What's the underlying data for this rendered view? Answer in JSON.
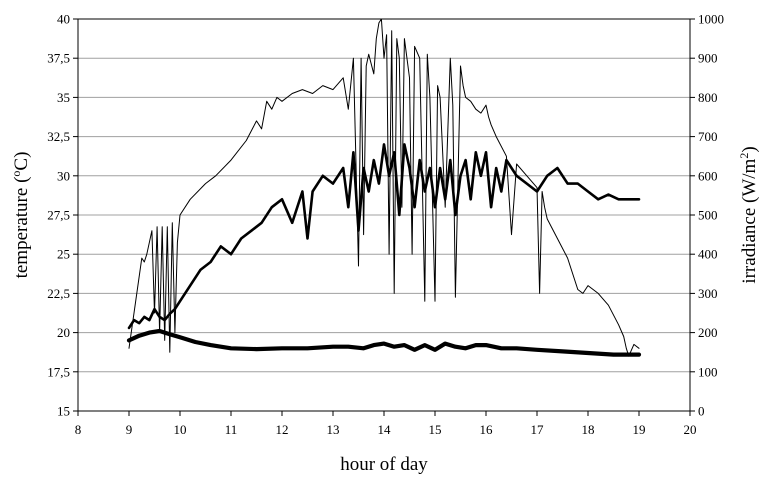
{
  "chart_data": {
    "type": "line",
    "title": "",
    "xlabel": "hour of day",
    "ylabel_left_text": "temperature (",
    "ylabel_left_sup": "o",
    "ylabel_left_unit": "C)",
    "ylabel_right_text": "irradiance (W/m",
    "ylabel_right_sup": "2",
    "ylabel_right_close": ")",
    "xlim": [
      8,
      20
    ],
    "ylim_left": [
      15,
      40
    ],
    "ylim_right": [
      0,
      1000
    ],
    "x_ticks": [
      "8",
      "9",
      "10",
      "11",
      "12",
      "13",
      "14",
      "15",
      "16",
      "17",
      "18",
      "19",
      "20"
    ],
    "y_left_ticks": [
      "15",
      "17,5",
      "20",
      "22,5",
      "25",
      "27,5",
      "30",
      "32,5",
      "35",
      "37,5",
      "40"
    ],
    "y_right_ticks": [
      "0",
      "100",
      "200",
      "300",
      "400",
      "500",
      "600",
      "700",
      "800",
      "900",
      "1000"
    ],
    "grid": true,
    "legend": "none",
    "series": [
      {
        "axis": "right",
        "style": "thin",
        "x": [
          9.0,
          9.25,
          9.3,
          9.35,
          9.45,
          9.5,
          9.55,
          9.6,
          9.65,
          9.7,
          9.75,
          9.8,
          9.85,
          9.9,
          9.95,
          10.0,
          10.2,
          10.5,
          10.7,
          11.0,
          11.3,
          11.5,
          11.6,
          11.7,
          11.8,
          11.9,
          12.0,
          12.2,
          12.4,
          12.6,
          12.8,
          13.0,
          13.2,
          13.3,
          13.4,
          13.5,
          13.55,
          13.6,
          13.65,
          13.7,
          13.8,
          13.85,
          13.9,
          13.95,
          14.0,
          14.05,
          14.1,
          14.15,
          14.2,
          14.25,
          14.3,
          14.35,
          14.4,
          14.5,
          14.55,
          14.6,
          14.7,
          14.8,
          14.85,
          14.9,
          15.0,
          15.05,
          15.1,
          15.2,
          15.3,
          15.35,
          15.4,
          15.5,
          15.55,
          15.6,
          15.7,
          15.8,
          15.9,
          16.0,
          16.05,
          16.1,
          16.2,
          16.4,
          16.5,
          16.6,
          16.8,
          17.0,
          17.05,
          17.1,
          17.15,
          17.2,
          17.4,
          17.6,
          17.8,
          17.9,
          18.0,
          18.2,
          18.4,
          18.6,
          18.7,
          18.75,
          18.8,
          18.9,
          19.0
        ],
        "y": [
          160,
          390,
          380,
          400,
          460,
          250,
          470,
          200,
          470,
          180,
          470,
          150,
          480,
          200,
          430,
          500,
          540,
          580,
          600,
          640,
          690,
          740,
          720,
          790,
          770,
          800,
          790,
          810,
          820,
          810,
          830,
          820,
          850,
          770,
          900,
          370,
          900,
          450,
          880,
          910,
          860,
          950,
          990,
          1000,
          900,
          960,
          400,
          970,
          300,
          950,
          900,
          520,
          950,
          850,
          400,
          930,
          900,
          280,
          910,
          800,
          280,
          830,
          800,
          520,
          900,
          780,
          290,
          880,
          830,
          800,
          790,
          770,
          760,
          780,
          750,
          730,
          700,
          650,
          450,
          630,
          600,
          570,
          300,
          560,
          520,
          490,
          440,
          390,
          310,
          300,
          320,
          300,
          270,
          220,
          190,
          160,
          140,
          170,
          160
        ]
      },
      {
        "axis": "left",
        "style": "thick",
        "x": [
          9.0,
          9.1,
          9.2,
          9.3,
          9.4,
          9.5,
          9.6,
          9.7,
          9.8,
          9.9,
          10.0,
          10.2,
          10.4,
          10.6,
          10.8,
          11.0,
          11.2,
          11.4,
          11.6,
          11.8,
          12.0,
          12.2,
          12.4,
          12.5,
          12.6,
          12.8,
          13.0,
          13.2,
          13.3,
          13.4,
          13.5,
          13.6,
          13.7,
          13.8,
          13.9,
          14.0,
          14.1,
          14.2,
          14.3,
          14.4,
          14.5,
          14.6,
          14.7,
          14.8,
          14.9,
          15.0,
          15.1,
          15.2,
          15.3,
          15.4,
          15.5,
          15.6,
          15.7,
          15.8,
          15.9,
          16.0,
          16.1,
          16.2,
          16.3,
          16.4,
          16.6,
          16.8,
          17.0,
          17.2,
          17.4,
          17.6,
          17.8,
          18.0,
          18.2,
          18.4,
          18.6,
          18.8,
          19.0
        ],
        "y": [
          20.3,
          20.8,
          20.6,
          21.0,
          20.8,
          21.5,
          21.0,
          20.8,
          21.2,
          21.5,
          22.0,
          23.0,
          24.0,
          24.5,
          25.5,
          25.0,
          26.0,
          26.5,
          27.0,
          28.0,
          28.5,
          27.0,
          29.0,
          26.0,
          29.0,
          30.0,
          29.5,
          30.5,
          28.0,
          31.5,
          26.5,
          30.5,
          29.0,
          31.0,
          29.5,
          32.0,
          30.0,
          31.5,
          27.5,
          32.0,
          30.5,
          28.0,
          31.0,
          29.0,
          30.5,
          28.0,
          30.5,
          28.5,
          31.0,
          27.5,
          30.0,
          31.0,
          28.5,
          31.5,
          30.0,
          31.5,
          28.0,
          30.5,
          29.0,
          31.0,
          30.0,
          29.5,
          29.0,
          30.0,
          30.5,
          29.5,
          29.5,
          29.0,
          28.5,
          28.8,
          28.5,
          28.5,
          28.5
        ]
      },
      {
        "axis": "left",
        "style": "heavy",
        "x": [
          9.0,
          9.2,
          9.4,
          9.6,
          9.8,
          10.0,
          10.3,
          10.6,
          11.0,
          11.5,
          12.0,
          12.5,
          13.0,
          13.3,
          13.6,
          13.8,
          14.0,
          14.2,
          14.4,
          14.6,
          14.8,
          15.0,
          15.2,
          15.4,
          15.6,
          15.8,
          16.0,
          16.3,
          16.6,
          17.0,
          17.5,
          18.0,
          18.5,
          19.0
        ],
        "y": [
          19.5,
          19.8,
          20.0,
          20.1,
          19.9,
          19.7,
          19.4,
          19.2,
          19.0,
          18.95,
          19.0,
          19.0,
          19.1,
          19.1,
          19.0,
          19.2,
          19.3,
          19.1,
          19.2,
          18.9,
          19.2,
          18.9,
          19.3,
          19.1,
          19.0,
          19.2,
          19.2,
          19.0,
          19.0,
          18.9,
          18.8,
          18.7,
          18.6,
          18.6
        ]
      }
    ]
  }
}
